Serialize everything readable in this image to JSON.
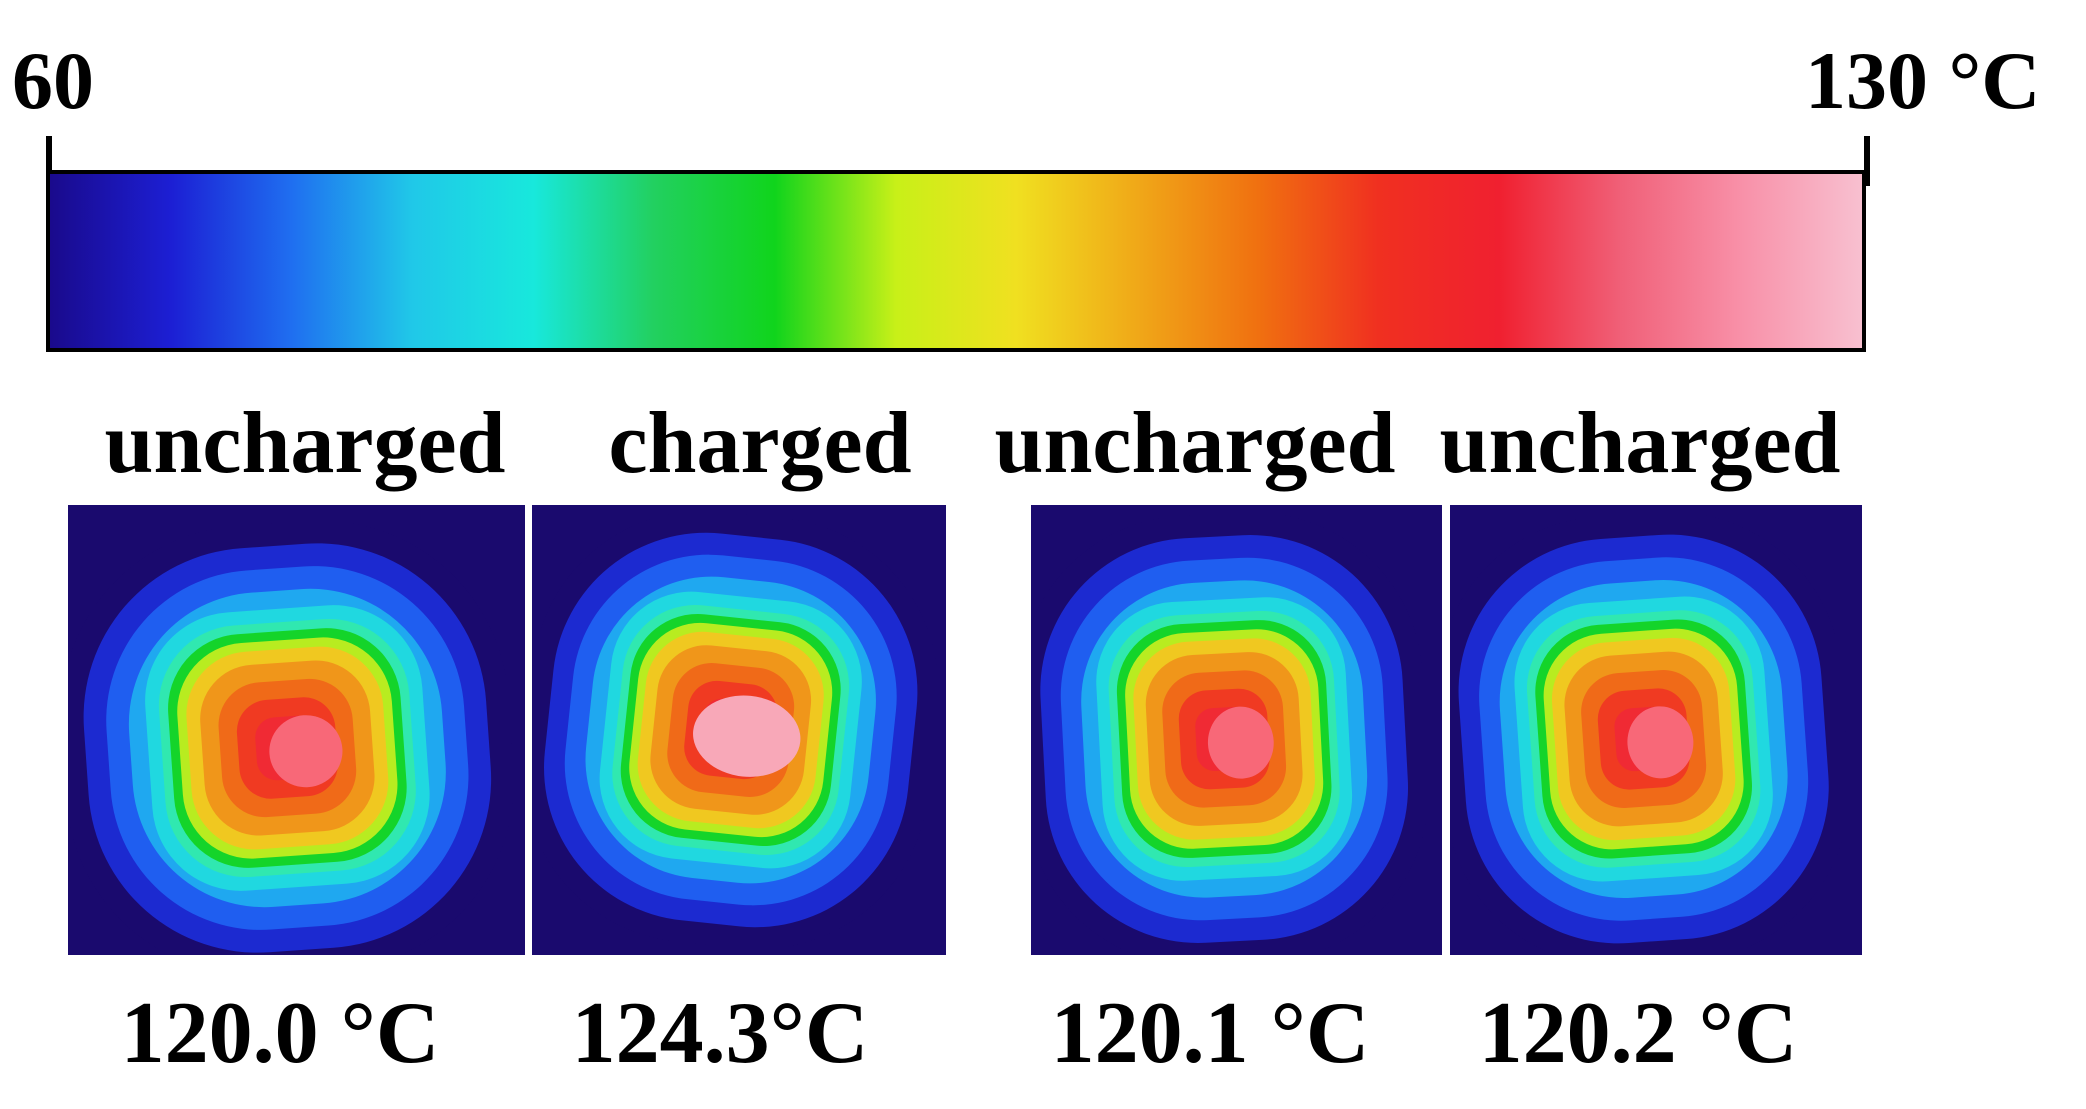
{
  "scale": {
    "min_label": "60",
    "max_label": "130 °C",
    "colormap": [
      "#1a0a8c",
      "#1c1fd4",
      "#1f6ef0",
      "#20c8e8",
      "#18e8dc",
      "#22d060",
      "#10d41c",
      "#c8f018",
      "#f0e020",
      "#f0a818",
      "#f07010",
      "#f03020",
      "#f02030",
      "#f06078",
      "#f890a8",
      "#f8c0d0"
    ]
  },
  "samples": [
    {
      "label": "uncharged",
      "temperature": "120.0 °C",
      "hot_color": "#f86878"
    },
    {
      "label": "charged",
      "temperature": "124.3°C",
      "hot_color": "#f8a8b8"
    },
    {
      "label": "uncharged",
      "temperature": "120.1 °C",
      "hot_color": "#f86878"
    },
    {
      "label": "uncharged",
      "temperature": "120.2 °C",
      "hot_color": "#f86878"
    }
  ]
}
